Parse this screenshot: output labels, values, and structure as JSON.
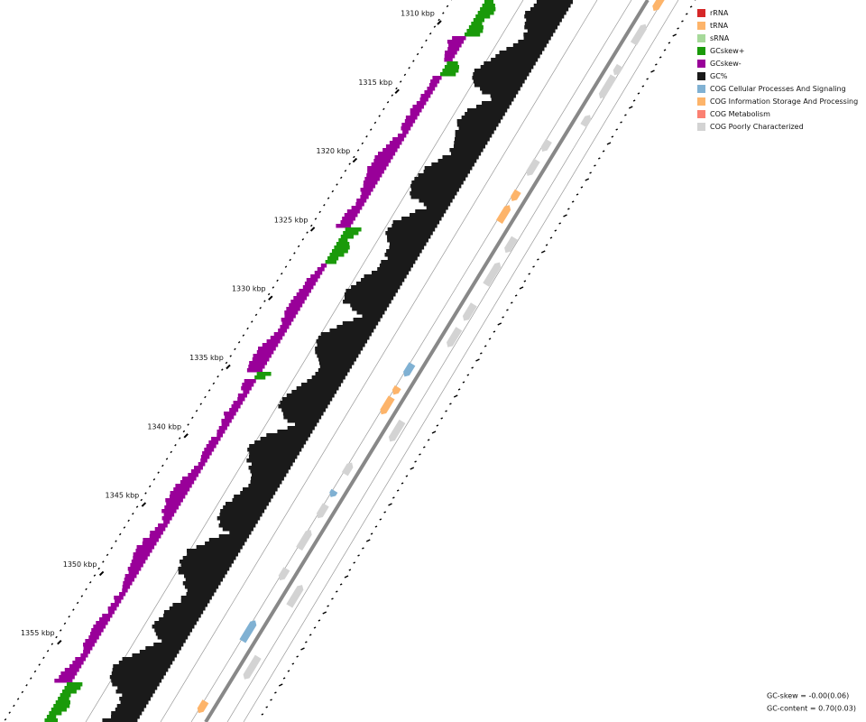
{
  "ticks": [
    "1310 kbp",
    "1315 kbp",
    "1320 kbp",
    "1325 kbp",
    "1330 kbp",
    "1335 kbp",
    "1340 kbp",
    "1345 kbp",
    "1350 kbp",
    "1355 kbp"
  ],
  "legend": [
    {
      "label": "rRNA",
      "color": "#d62728"
    },
    {
      "label": "tRNA",
      "color": "#fdb46a"
    },
    {
      "label": "sRNA",
      "color": "#a6d99a"
    },
    {
      "label": "GCskew+",
      "color": "#1a9a0a"
    },
    {
      "label": "GCskew-",
      "color": "#990099"
    },
    {
      "label": "GC%",
      "color": "#1a1a1a"
    },
    {
      "label": "COG Cellular Processes And Signaling",
      "color": "#80b1d3"
    },
    {
      "label": "COG Information Storage And Processing",
      "color": "#fdb46a"
    },
    {
      "label": "COG Metabolism",
      "color": "#fb8072"
    },
    {
      "label": "COG Poorly Characterized",
      "color": "#d3d3d3"
    }
  ],
  "stats": [
    "GC-skew = -0.00(0.06)",
    "GC-content = 0.70(0.03)"
  ]
}
